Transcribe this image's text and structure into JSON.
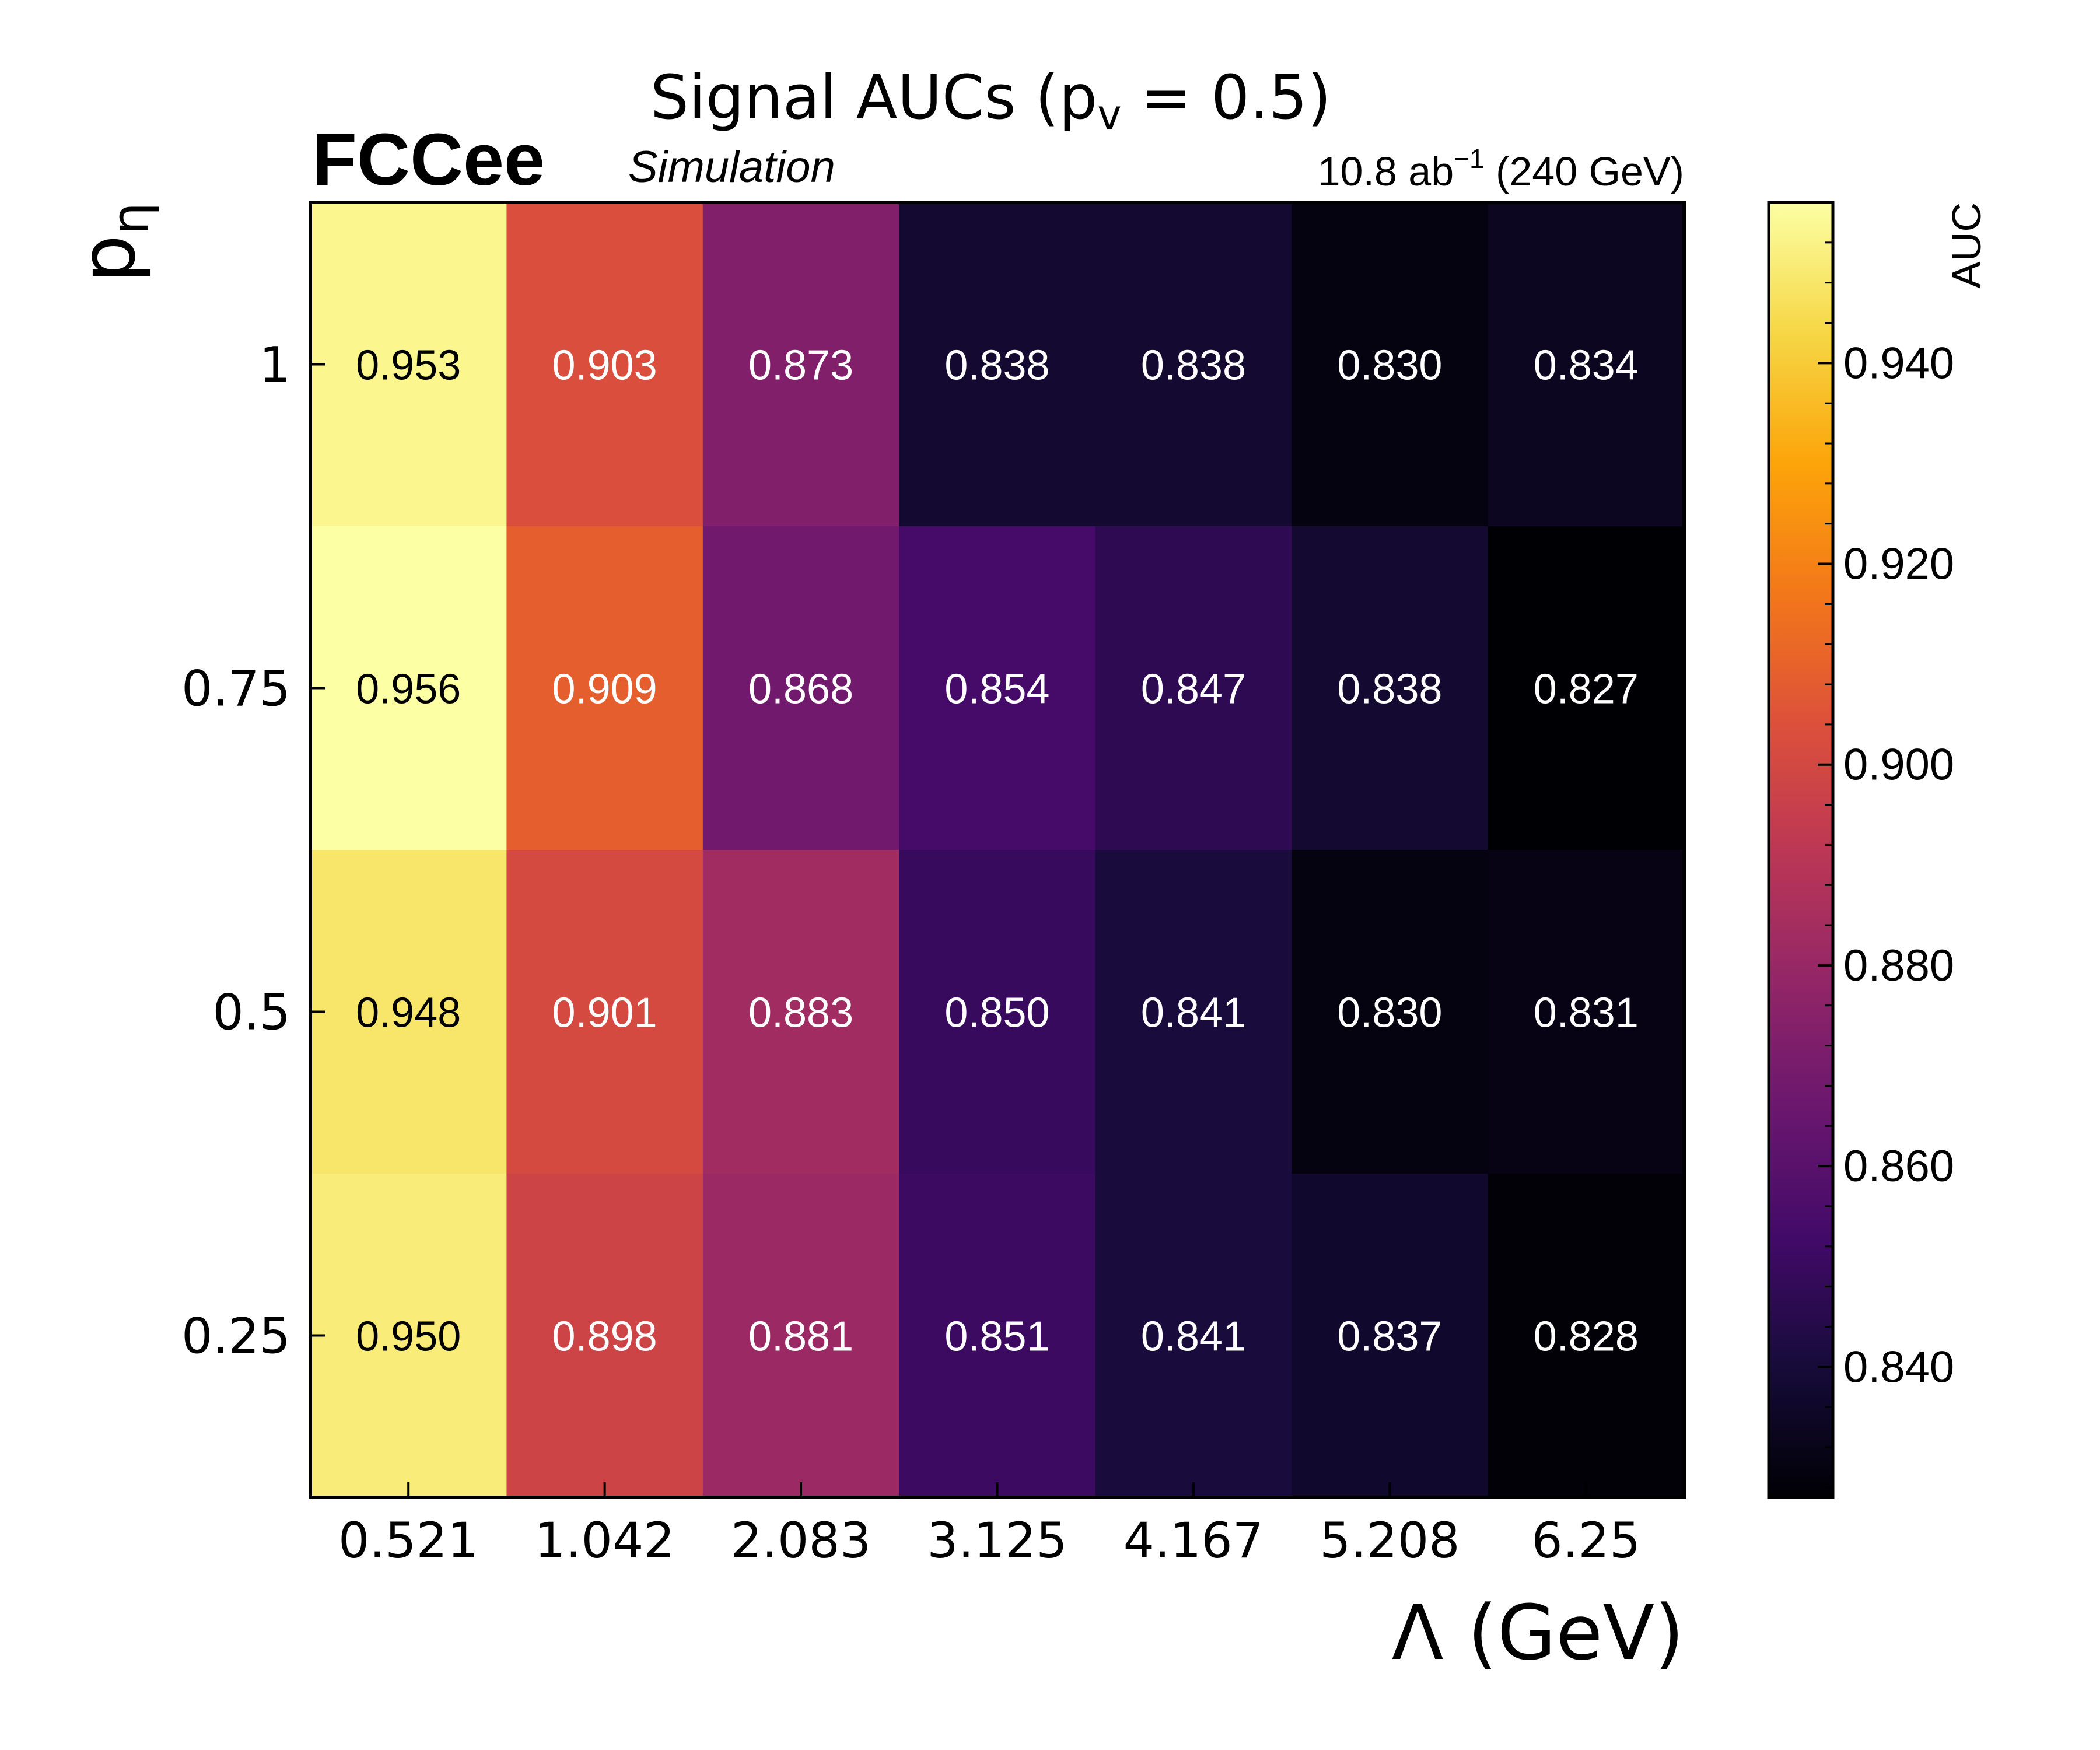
{
  "chart_data": {
    "type": "heatmap",
    "title": "Signal AUCs (p",
    "title_sub": "v",
    "title_suffix": " = 0.5)",
    "experiment_label": "FCCee",
    "experiment_sublabel": "Simulation",
    "lumi_label": "10.8 ab",
    "lumi_sup": "−1",
    "lumi_suffix": " (240 GeV)",
    "xlabel": "Λ (GeV)",
    "ylabel": "p",
    "ylabel_sub": "η",
    "x_categories": [
      "0.521",
      "1.042",
      "2.083",
      "3.125",
      "4.167",
      "5.208",
      "6.25"
    ],
    "y_categories": [
      "1",
      "0.75",
      "0.5",
      "0.25"
    ],
    "values": [
      [
        0.953,
        0.903,
        0.873,
        0.838,
        0.838,
        0.83,
        0.834
      ],
      [
        0.956,
        0.909,
        0.868,
        0.854,
        0.847,
        0.838,
        0.827
      ],
      [
        0.948,
        0.901,
        0.883,
        0.85,
        0.841,
        0.83,
        0.831
      ],
      [
        0.95,
        0.898,
        0.881,
        0.851,
        0.841,
        0.837,
        0.828
      ]
    ],
    "colorbar": {
      "label": "AUC",
      "colormap": "inferno",
      "vmin": 0.827,
      "vmax": 0.956,
      "ticks": [
        "0.840",
        "0.860",
        "0.880",
        "0.900",
        "0.920",
        "0.940"
      ]
    },
    "grid": false
  }
}
